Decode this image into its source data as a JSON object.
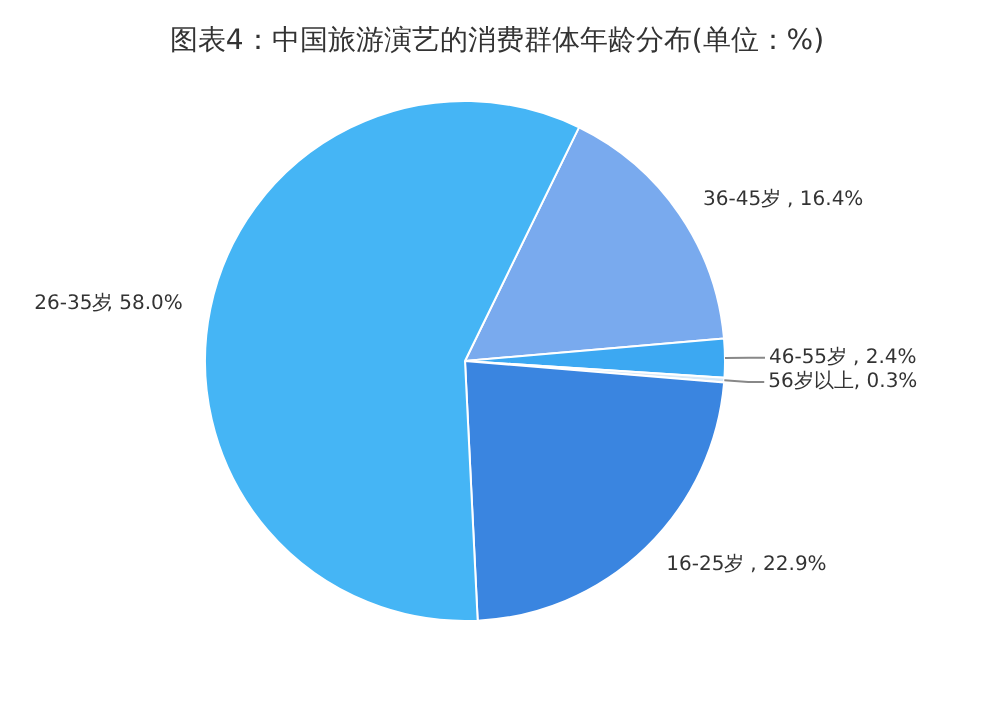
{
  "chart_data": {
    "type": "pie",
    "title": "图表4：中国旅游演艺的消费群体年龄分布(单位：%)",
    "categories": [
      "36-45岁",
      "46-55岁",
      "56岁以上",
      "16-25岁",
      "26-35岁"
    ],
    "values": [
      16.4,
      2.4,
      0.3,
      22.9,
      58.0
    ],
    "colors": [
      "#79aaee",
      "#3ca8f2",
      "#d6e8f8",
      "#3a85e0",
      "#45b5f5"
    ],
    "value_labels": [
      ", 16.4%",
      ", 2.4%",
      ", 0.3%",
      ", 22.9%",
      ", 58.0%"
    ]
  }
}
